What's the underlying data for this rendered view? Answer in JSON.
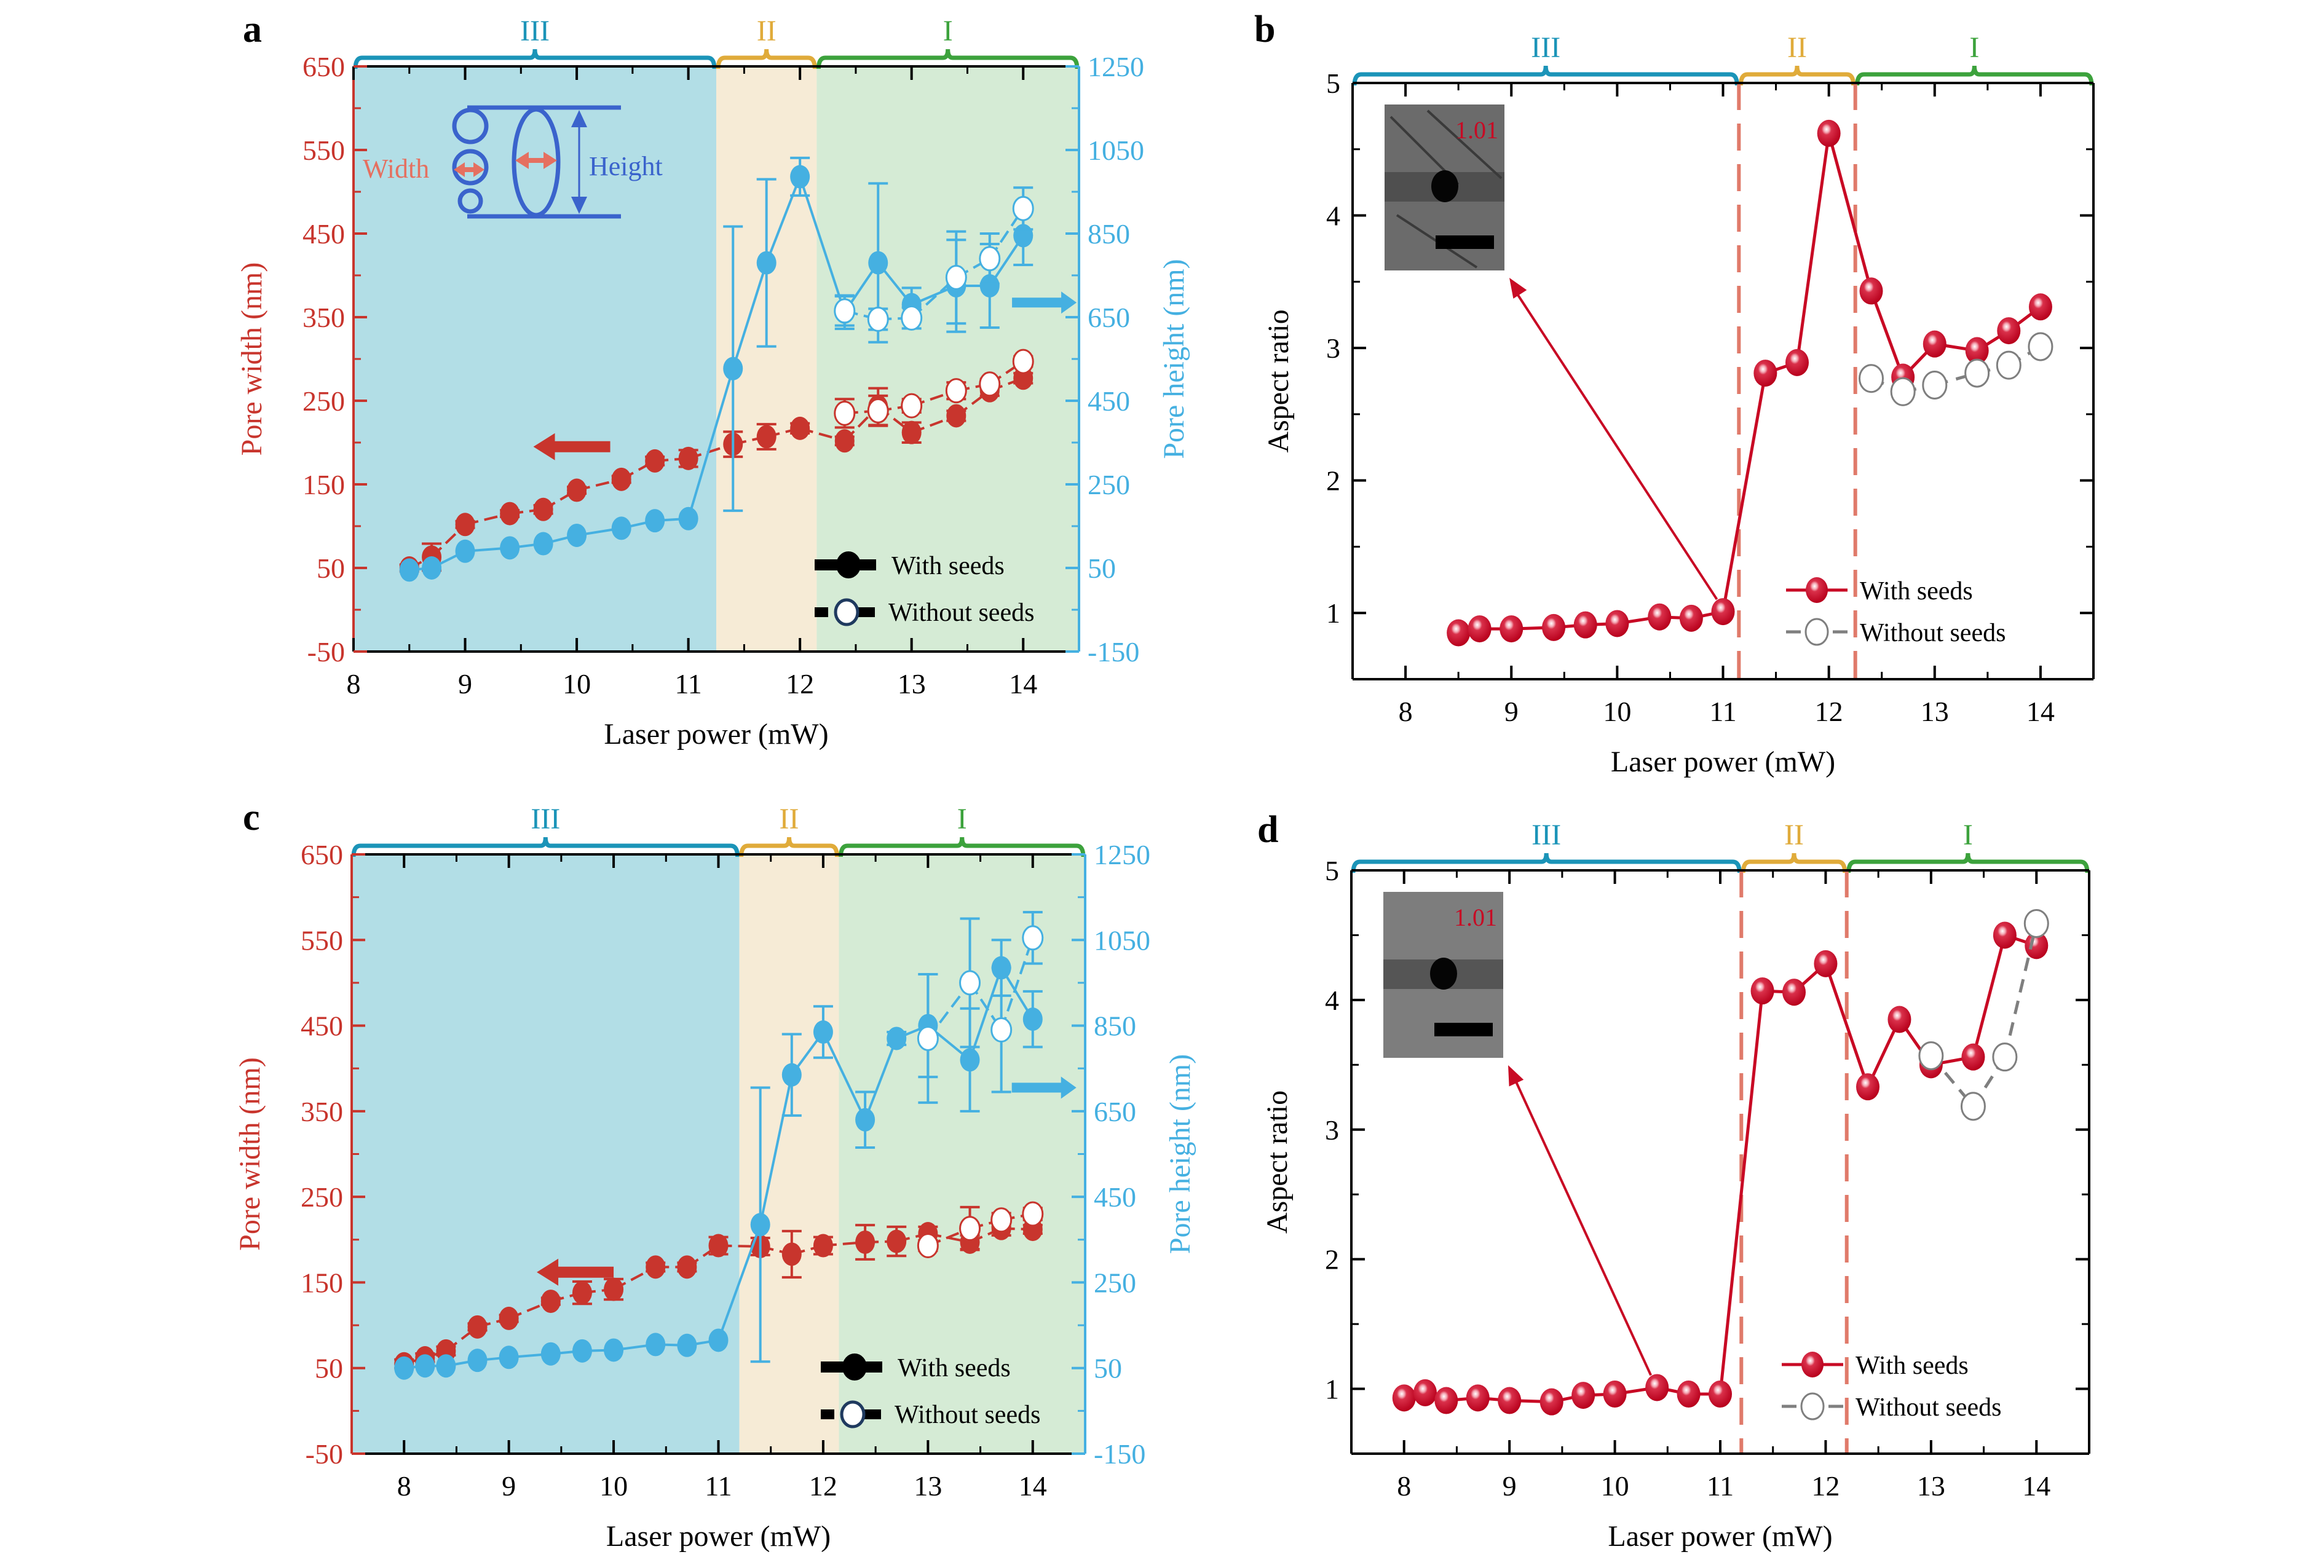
{
  "colors": {
    "width_red": "#c8352d",
    "height_blue": "#45b0e1",
    "aspect_red": "#c80a24",
    "region_III": "#1b94b8",
    "region_II": "#e0ab3a",
    "region_I": "#3ca23c",
    "region_III_fill": "#b2dee6",
    "region_II_fill": "#f6ebd6",
    "region_I_fill": "#d5ebd5",
    "dashed_divider": "#e07a6a",
    "without_grey": "#7f7f7f",
    "diagram_blue": "#3a63cc",
    "diagram_orange": "#e57060"
  },
  "chart_data": [
    {
      "id": "a",
      "panel_label": "a",
      "type": "line",
      "xlabel": "Laser power (mW)",
      "ylabel_left": "Pore width (nm)",
      "ylabel_right": "Pore height (nm)",
      "xlim": [
        8,
        14.5
      ],
      "xticks": [
        8,
        9,
        10,
        11,
        12,
        13,
        14
      ],
      "ylim_left": [
        -50,
        650
      ],
      "yticks_left": [
        -50,
        50,
        150,
        250,
        350,
        450,
        550,
        650
      ],
      "ylim_right": [
        -150,
        1250
      ],
      "yticks_right": [
        "-150",
        "50",
        "250",
        "450",
        "650",
        "850",
        "1050",
        "1250"
      ],
      "regions": [
        {
          "label": "III",
          "from": 8,
          "to": 11.25
        },
        {
          "label": "II",
          "from": 11.25,
          "to": 12.15
        },
        {
          "label": "I",
          "from": 12.15,
          "to": 14.5
        }
      ],
      "inset_diagram": {
        "width_label": "Width",
        "height_label": "Height"
      },
      "legend": [
        "With seeds",
        "Without seeds"
      ],
      "legend_position": "bottom-right",
      "series": [
        {
          "name": "Pore width - With seeds",
          "axis": "left",
          "style": "filled",
          "color_key": "width_red",
          "x": [
            8.5,
            8.7,
            9,
            9.4,
            9.7,
            10,
            10.4,
            10.7,
            11,
            11.4,
            11.7,
            12,
            12.4,
            12.7,
            13,
            13.4,
            13.7,
            14
          ],
          "y": [
            50,
            63,
            102,
            115,
            120,
            143,
            156,
            178,
            181,
            198,
            207,
            217,
            202,
            243,
            212,
            232,
            262,
            277
          ],
          "err": [
            4,
            16,
            4,
            4,
            5,
            4,
            4,
            5,
            10,
            15,
            15,
            6,
            5,
            22,
            12,
            6,
            6,
            6
          ]
        },
        {
          "name": "Pore width - Without seeds",
          "axis": "left",
          "style": "open",
          "color_key": "width_red",
          "x": [
            12.4,
            12.7,
            13,
            13.4,
            13.7,
            14
          ],
          "y": [
            235,
            238,
            244,
            262,
            270,
            297
          ],
          "err": [
            17,
            18,
            8,
            10,
            6,
            6
          ]
        },
        {
          "name": "Pore height - With seeds",
          "axis": "right",
          "style": "filled",
          "color_key": "height_blue",
          "x": [
            8.5,
            8.7,
            9,
            9.4,
            9.7,
            10,
            10.4,
            10.7,
            11,
            11.4,
            11.7,
            12,
            12.4,
            12.7,
            13,
            13.4,
            13.7,
            14
          ],
          "y": [
            45,
            50,
            90,
            98,
            108,
            128,
            145,
            163,
            168,
            527,
            780,
            986,
            662,
            780,
            680,
            725,
            725,
            845
          ],
          "err": [
            0,
            0,
            0,
            0,
            0,
            0,
            0,
            0,
            0,
            340,
            200,
            45,
            40,
            190,
            40,
            110,
            100,
            70
          ]
        },
        {
          "name": "Pore height - Without seeds",
          "axis": "right",
          "style": "open",
          "color_key": "height_blue",
          "x": [
            12.4,
            12.7,
            13,
            13.4,
            13.7,
            14
          ],
          "y": [
            665,
            645,
            648,
            745,
            790,
            910
          ],
          "err": [
            35,
            25,
            25,
            110,
            60,
            50
          ]
        }
      ]
    },
    {
      "id": "b",
      "panel_label": "b",
      "type": "line",
      "xlabel": "Laser power (mW)",
      "ylabel": "Aspect ratio",
      "xlim": [
        7.5,
        14.5
      ],
      "xticks": [
        8,
        9,
        10,
        11,
        12,
        13,
        14
      ],
      "ylim": [
        0.5,
        5
      ],
      "yticks": [
        1,
        2,
        3,
        4,
        5
      ],
      "regions": [
        {
          "label": "III",
          "from": 7.5,
          "to": 11.15
        },
        {
          "label": "II",
          "from": 11.15,
          "to": 12.25
        },
        {
          "label": "I",
          "from": 12.25,
          "to": 14.5
        }
      ],
      "dividers": [
        11.15,
        12.25
      ],
      "inset": {
        "value_label": "1.01",
        "points_to": [
          11,
          1.01
        ]
      },
      "legend": [
        "With seeds",
        "Without seeds"
      ],
      "legend_position": "bottom-right",
      "series": [
        {
          "name": "With seeds",
          "style": "ball",
          "color_key": "aspect_red",
          "x": [
            8.5,
            8.7,
            9,
            9.4,
            9.7,
            10,
            10.4,
            10.7,
            11,
            11.4,
            11.7,
            12,
            12.4,
            12.7,
            13,
            13.4,
            13.7,
            14
          ],
          "y": [
            0.85,
            0.88,
            0.88,
            0.89,
            0.91,
            0.92,
            0.97,
            0.96,
            1.01,
            2.81,
            2.89,
            4.62,
            3.43,
            2.78,
            3.03,
            2.98,
            3.13,
            3.31
          ]
        },
        {
          "name": "Without seeds",
          "style": "open-grey",
          "color_key": "without_grey",
          "x": [
            12.4,
            12.7,
            13,
            13.4,
            13.7,
            14
          ],
          "y": [
            2.77,
            2.67,
            2.72,
            2.81,
            2.87,
            3.01
          ]
        }
      ]
    },
    {
      "id": "c",
      "panel_label": "c",
      "type": "line",
      "xlabel": "Laser power (mW)",
      "ylabel_left": "Pore width (nm)",
      "ylabel_right": "Pore height (nm)",
      "xlim": [
        7.5,
        14.5
      ],
      "xticks": [
        8,
        9,
        10,
        11,
        12,
        13,
        14
      ],
      "ylim_left": [
        -50,
        650
      ],
      "yticks_left": [
        -50,
        50,
        150,
        250,
        350,
        450,
        550,
        650
      ],
      "ylim_right": [
        -150,
        1250
      ],
      "yticks_right": [
        "-150",
        "50",
        "250",
        "450",
        "650",
        "850",
        "1050",
        "1250"
      ],
      "regions": [
        {
          "label": "III",
          "from": 7.5,
          "to": 11.2
        },
        {
          "label": "II",
          "from": 11.2,
          "to": 12.15
        },
        {
          "label": "I",
          "from": 12.15,
          "to": 14.5
        }
      ],
      "legend": [
        "With seeds",
        "Without seeds"
      ],
      "legend_position": "bottom-right",
      "series": [
        {
          "name": "Pore width - With seeds",
          "axis": "left",
          "style": "filled",
          "color_key": "width_red",
          "x": [
            8,
            8.2,
            8.4,
            8.7,
            9,
            9.4,
            9.7,
            10,
            10.4,
            10.7,
            11,
            11.4,
            11.7,
            12,
            12.4,
            12.7,
            13,
            13.4,
            13.7,
            14
          ],
          "y": [
            55,
            62,
            70,
            98,
            108,
            128,
            138,
            142,
            168,
            168,
            193,
            192,
            183,
            193,
            197,
            198,
            207,
            197,
            213,
            212
          ],
          "err": [
            5,
            5,
            5,
            4,
            4,
            4,
            13,
            12,
            5,
            5,
            10,
            10,
            27,
            10,
            20,
            17,
            8,
            8,
            8,
            5
          ]
        },
        {
          "name": "Pore width - Without seeds",
          "axis": "left",
          "style": "open",
          "color_key": "width_red",
          "x": [
            13,
            13.4,
            13.7,
            14
          ],
          "y": [
            193,
            213,
            223,
            230
          ],
          "err": [
            6,
            25,
            8,
            7
          ]
        },
        {
          "name": "Pore height - With seeds",
          "axis": "right",
          "style": "filled",
          "color_key": "height_blue",
          "x": [
            8,
            8.2,
            8.4,
            8.7,
            9,
            9.4,
            9.7,
            10,
            10.4,
            10.7,
            11,
            11.4,
            11.7,
            12,
            12.4,
            12.7,
            13,
            13.4,
            13.7,
            14
          ],
          "y": [
            50,
            55,
            55,
            68,
            75,
            83,
            90,
            92,
            105,
            103,
            115,
            385,
            735,
            835,
            630,
            820,
            850,
            770,
            985,
            865
          ],
          "err": [
            0,
            0,
            0,
            0,
            0,
            0,
            0,
            0,
            0,
            0,
            0,
            320,
            95,
            60,
            65,
            15,
            120,
            120,
            65,
            65
          ]
        },
        {
          "name": "Pore height - Without seeds",
          "axis": "right",
          "style": "open",
          "color_key": "height_blue",
          "x": [
            13,
            13.4,
            13.7,
            14
          ],
          "y": [
            820,
            950,
            840,
            1055
          ],
          "err": [
            150,
            150,
            145,
            60
          ]
        }
      ]
    },
    {
      "id": "d",
      "panel_label": "d",
      "type": "line",
      "xlabel": "Laser power (mW)",
      "ylabel": "Aspect ratio",
      "xlim": [
        7.5,
        14.5
      ],
      "xticks": [
        8,
        9,
        10,
        11,
        12,
        13,
        14
      ],
      "ylim": [
        0.5,
        5
      ],
      "yticks": [
        1,
        2,
        3,
        4,
        5
      ],
      "regions": [
        {
          "label": "III",
          "from": 7.5,
          "to": 11.2
        },
        {
          "label": "II",
          "from": 11.2,
          "to": 12.2
        },
        {
          "label": "I",
          "from": 12.2,
          "to": 14.5
        }
      ],
      "dividers": [
        11.2,
        12.2
      ],
      "inset": {
        "value_label": "1.01",
        "points_to": [
          10.4,
          1.01
        ]
      },
      "legend": [
        "With seeds",
        "Without seeds"
      ],
      "legend_position": "bottom-right",
      "series": [
        {
          "name": "With seeds",
          "style": "ball",
          "color_key": "aspect_red",
          "x": [
            8,
            8.2,
            8.4,
            8.7,
            9,
            9.4,
            9.7,
            10,
            10.4,
            10.7,
            11,
            11.4,
            11.7,
            12,
            12.4,
            12.7,
            13,
            13.4,
            13.7,
            14
          ],
          "y": [
            0.93,
            0.97,
            0.91,
            0.93,
            0.91,
            0.9,
            0.95,
            0.96,
            1.01,
            0.96,
            0.96,
            4.07,
            4.06,
            4.28,
            3.33,
            3.85,
            3.5,
            3.56,
            4.5,
            4.42
          ]
        },
        {
          "name": "Without seeds",
          "style": "open-grey",
          "color_key": "without_grey",
          "x": [
            13,
            13.4,
            13.7,
            14
          ],
          "y": [
            3.57,
            3.18,
            3.56,
            4.59
          ]
        }
      ]
    }
  ]
}
